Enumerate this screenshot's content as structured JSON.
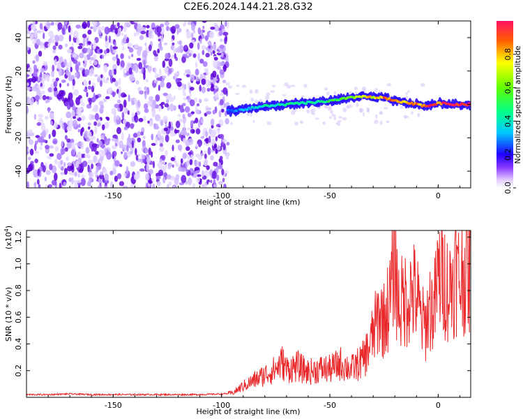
{
  "title": "C2E6.2024.144.21.28.G32",
  "colors": {
    "snr_line": "#e8282a",
    "spectrogram_purple": "#5a00d8",
    "spectrogram_light": "#d8c8f8"
  },
  "chart_data": [
    {
      "type": "heatmap",
      "title": "C2E6.2024.144.21.28.G32",
      "xlabel": "Height of straight line (km)",
      "ylabel": "Frequency (Hz)",
      "xlim": [
        -190,
        15
      ],
      "ylim": [
        -50,
        50
      ],
      "xticks": [
        -150,
        -100,
        -50,
        0
      ],
      "xtick_labels": [
        "-150",
        "-100",
        "-50",
        "0"
      ],
      "yticks": [
        40,
        20,
        0,
        -20,
        -40
      ],
      "ytick_labels": [
        "40",
        "20",
        "0",
        "-20",
        "-40"
      ],
      "grid": false,
      "colorbar": {
        "label": "Normalized spectral amplitude",
        "range": [
          0,
          1
        ],
        "ticks": [
          0.0,
          0.2,
          0.4,
          0.6,
          0.8
        ],
        "tick_labels": [
          "0.0",
          "0.2",
          "0.4",
          "0.6",
          "0.8"
        ]
      },
      "noise_region": {
        "x_range": [
          -190,
          -97
        ],
        "amplitude": "low",
        "frequency_range": [
          -50,
          50
        ]
      },
      "signal_ridge": {
        "x": [
          -97,
          -90,
          -80,
          -70,
          -60,
          -50,
          -40,
          -35,
          -30,
          -25,
          -20,
          -15,
          -10,
          -5,
          0,
          5,
          10,
          15
        ],
        "frequency": [
          -4,
          -3,
          -1,
          0,
          1,
          2,
          4,
          5,
          4,
          4,
          2,
          1,
          0,
          -1,
          1,
          0,
          0,
          0
        ],
        "amplitude": [
          0.25,
          0.3,
          0.4,
          0.45,
          0.45,
          0.5,
          0.6,
          0.7,
          0.75,
          0.85,
          0.85,
          0.85,
          0.85,
          0.9,
          0.9,
          1.0,
          1.0,
          0.95
        ]
      }
    },
    {
      "type": "line",
      "xlabel": "Height of straight line (km)",
      "ylabel": "SNR (10 * v/v)",
      "y_multiplier_label": "(x10",
      "y_multiplier_exp": "4",
      "y_multiplier_close": ")",
      "xlim": [
        -190,
        15
      ],
      "ylim": [
        0,
        1.25
      ],
      "xticks": [
        -150,
        -100,
        -50,
        0
      ],
      "xtick_labels": [
        "-150",
        "-100",
        "-50",
        "0"
      ],
      "yticks": [
        0.2,
        0.4,
        0.6,
        0.8,
        1.0,
        1.2
      ],
      "ytick_labels": [
        "0.2",
        "0.4",
        "0.6",
        "0.8",
        "1.0",
        "1.2"
      ],
      "grid": false,
      "series": [
        {
          "color": "#e8282a",
          "x": [
            -190,
            -180,
            -170,
            -160,
            -150,
            -140,
            -130,
            -120,
            -110,
            -100,
            -95,
            -92,
            -90,
            -85,
            -80,
            -75,
            -72,
            -70,
            -65,
            -60,
            -55,
            -50,
            -45,
            -40,
            -35,
            -32,
            -30,
            -27,
            -25,
            -22,
            -20,
            -19,
            -18,
            -15,
            -12,
            -10,
            -8,
            -6,
            -4,
            -2,
            0,
            2,
            5,
            8,
            10,
            12,
            15
          ],
          "y": [
            0.02,
            0.02,
            0.025,
            0.02,
            0.02,
            0.02,
            0.02,
            0.02,
            0.02,
            0.025,
            0.03,
            0.06,
            0.08,
            0.12,
            0.16,
            0.2,
            0.25,
            0.2,
            0.22,
            0.18,
            0.2,
            0.2,
            0.24,
            0.2,
            0.26,
            0.35,
            0.45,
            0.6,
            0.55,
            0.7,
            1.05,
            0.75,
            0.65,
            0.7,
            0.75,
            0.72,
            0.55,
            0.5,
            0.65,
            0.62,
            0.85,
            0.88,
            0.75,
            0.9,
            0.82,
            0.9,
            0.9
          ]
        }
      ]
    }
  ]
}
